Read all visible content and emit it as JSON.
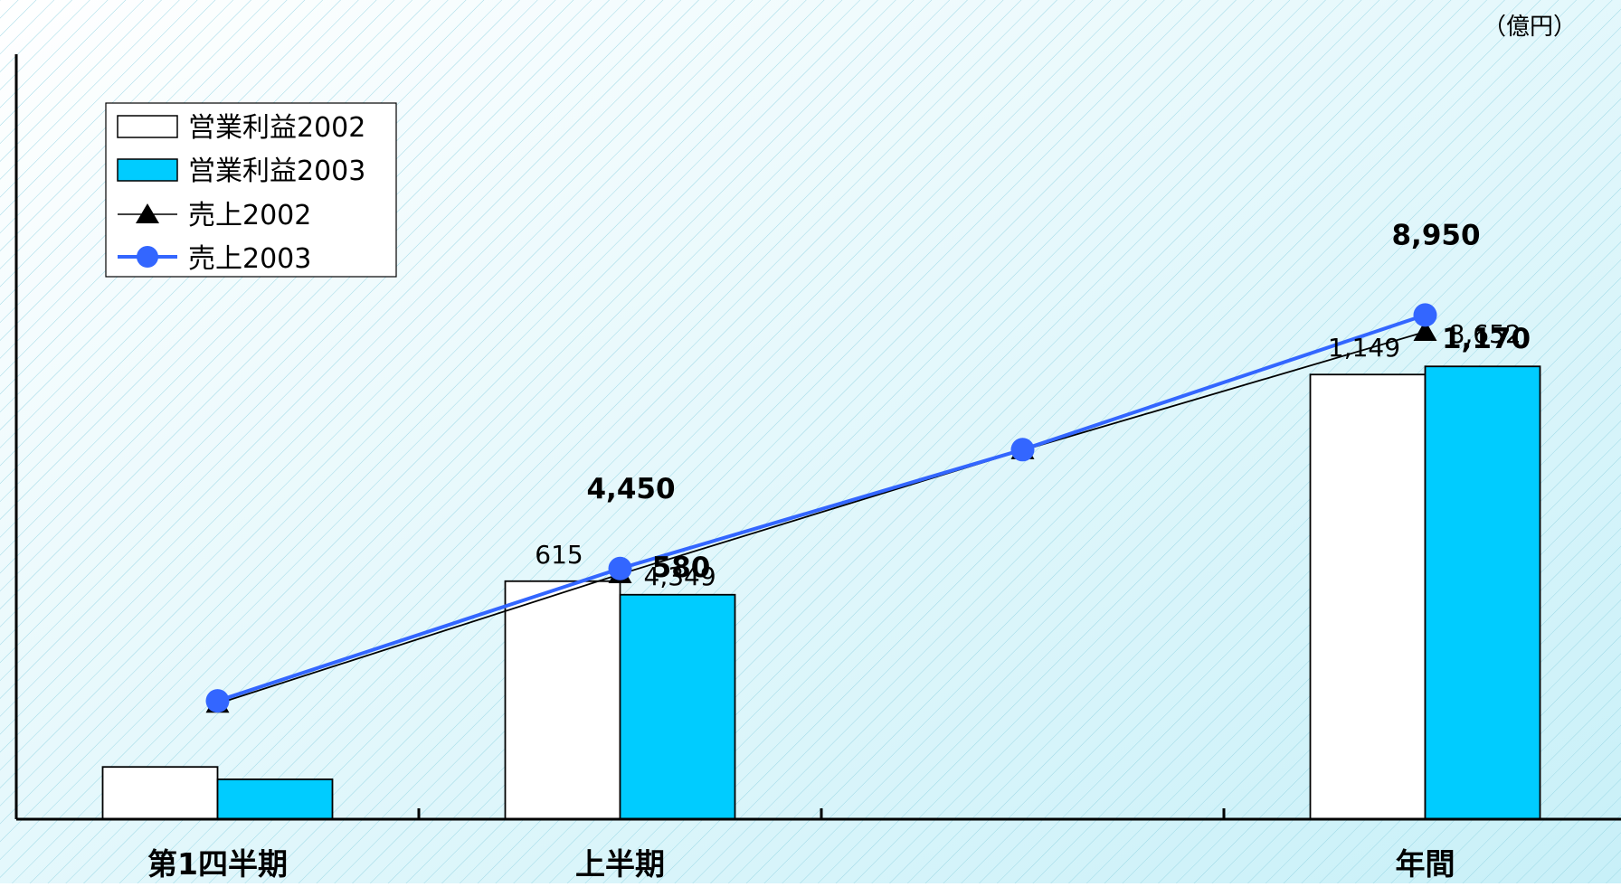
{
  "chart_data": {
    "type": "bar",
    "unit_label": "（億円）",
    "categories": [
      "第1四半期",
      "上半期",
      "",
      "年間"
    ],
    "bar_series": [
      {
        "name": "営業利益2002",
        "values": [
          135,
          615,
          null,
          1149
        ],
        "value_labels": [
          "",
          "615",
          "",
          "1,149"
        ],
        "color": "#FFFFFF"
      },
      {
        "name": "営業利益2003",
        "values": [
          103,
          580,
          null,
          1170
        ],
        "value_labels": [
          "",
          "580",
          "",
          "1,170"
        ],
        "color": "#00CCFF"
      }
    ],
    "line_series": [
      {
        "name": "売上2002",
        "values": [
          2050,
          4349,
          6550,
          8652
        ],
        "value_labels": [
          "",
          "4,349",
          "",
          "8,652"
        ],
        "marker": "triangle",
        "color": "#000000"
      },
      {
        "name": "売上2003",
        "values": [
          2100,
          4450,
          6560,
          8950
        ],
        "value_labels": [
          "",
          "4,450",
          "",
          "8,950"
        ],
        "marker": "circle",
        "color": "#3366FF"
      }
    ],
    "ylim_bars": [
      0,
      1600
    ],
    "ylim_lines": [
      0,
      11000
    ],
    "grid": false,
    "legend_position": "top-left"
  }
}
